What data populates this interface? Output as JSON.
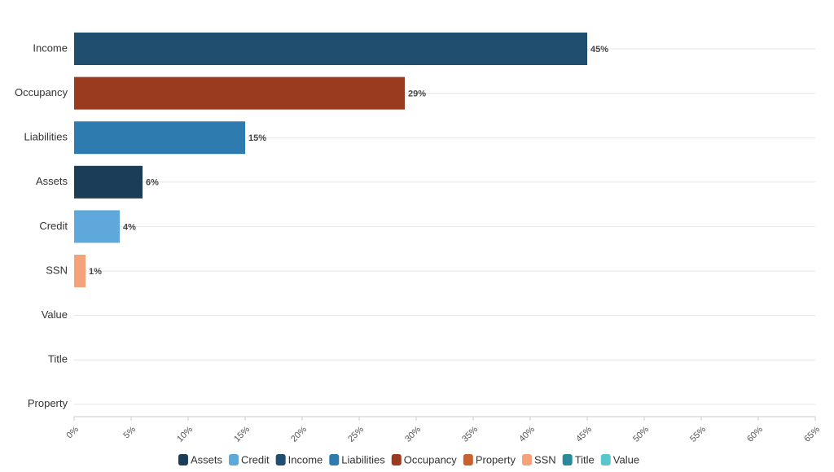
{
  "chart_data": {
    "type": "bar",
    "orientation": "horizontal",
    "categories": [
      "Income",
      "Occupancy",
      "Liabilities",
      "Assets",
      "Credit",
      "SSN",
      "Value",
      "Title",
      "Property"
    ],
    "values": [
      45,
      29,
      15,
      6,
      4,
      1,
      null,
      null,
      null
    ],
    "value_labels": [
      "45%",
      "29%",
      "15%",
      "6%",
      "4%",
      "1%",
      null,
      null,
      null
    ],
    "xlim": [
      0,
      65
    ],
    "xticks": [
      {
        "value": 0,
        "label": "0%"
      },
      {
        "value": 5,
        "label": "5%"
      },
      {
        "value": 10,
        "label": "10%"
      },
      {
        "value": 15,
        "label": "15%"
      },
      {
        "value": 20,
        "label": "20%"
      },
      {
        "value": 25,
        "label": "25%"
      },
      {
        "value": 30,
        "label": "30%"
      },
      {
        "value": 35,
        "label": "35%"
      },
      {
        "value": 40,
        "label": "40%"
      },
      {
        "value": 45,
        "label": "45%"
      },
      {
        "value": 50,
        "label": "50%"
      },
      {
        "value": 55,
        "label": "55%"
      },
      {
        "value": 60,
        "label": "60%"
      },
      {
        "value": 65,
        "label": "65%"
      }
    ],
    "legend": [
      {
        "name": "Assets",
        "color": "#1c3d58"
      },
      {
        "name": "Credit",
        "color": "#5fa8dc"
      },
      {
        "name": "Income",
        "color": "#1f4e6e"
      },
      {
        "name": "Liabilities",
        "color": "#2e7bb0"
      },
      {
        "name": "Occupancy",
        "color": "#9a3a1e"
      },
      {
        "name": "Property",
        "color": "#c9602e"
      },
      {
        "name": "SSN",
        "color": "#f5a27a"
      },
      {
        "name": "Title",
        "color": "#2a8a9a"
      },
      {
        "name": "Value",
        "color": "#5cc6cf"
      }
    ]
  }
}
